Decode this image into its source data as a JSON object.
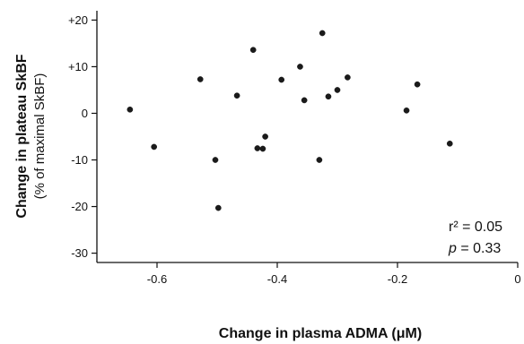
{
  "chart_data": {
    "type": "scatter",
    "title": "",
    "xlabel": "Change in plasma ADMA (μM)",
    "ylabel": "Change in plateau SkBF",
    "ylabel_sub": "(% of maximal SkBF)",
    "xlim": [
      -0.7,
      0.0
    ],
    "ylim": [
      -32,
      22
    ],
    "x_ticks": [
      {
        "value": -0.6,
        "label": "-0.6"
      },
      {
        "value": -0.4,
        "label": "-0.4"
      },
      {
        "value": -0.2,
        "label": "-0.2"
      },
      {
        "value": 0.0,
        "label": "0"
      }
    ],
    "y_ticks": [
      {
        "value": 20,
        "label": "+20"
      },
      {
        "value": 10,
        "label": "+10"
      },
      {
        "value": 0,
        "label": "0"
      },
      {
        "value": -10,
        "label": "-10"
      },
      {
        "value": -20,
        "label": "-20"
      },
      {
        "value": -30,
        "label": "-30"
      }
    ],
    "grid": false,
    "stats": {
      "r2": "r² = 0.05",
      "p_symbol": "p",
      "p_rest": " = 0.33"
    },
    "points": [
      {
        "x": -0.645,
        "y": 0.8
      },
      {
        "x": -0.605,
        "y": -7.2
      },
      {
        "x": -0.528,
        "y": 7.3
      },
      {
        "x": -0.503,
        "y": -10.0
      },
      {
        "x": -0.498,
        "y": -20.3
      },
      {
        "x": -0.467,
        "y": 3.8
      },
      {
        "x": -0.44,
        "y": 13.6
      },
      {
        "x": -0.433,
        "y": -7.5
      },
      {
        "x": -0.424,
        "y": -7.6
      },
      {
        "x": -0.42,
        "y": -5.0
      },
      {
        "x": -0.393,
        "y": 7.2
      },
      {
        "x": -0.362,
        "y": 10.0
      },
      {
        "x": -0.355,
        "y": 2.8
      },
      {
        "x": -0.33,
        "y": -10.0
      },
      {
        "x": -0.325,
        "y": 17.2
      },
      {
        "x": -0.315,
        "y": 3.6
      },
      {
        "x": -0.3,
        "y": 5.0
      },
      {
        "x": -0.283,
        "y": 7.7
      },
      {
        "x": -0.185,
        "y": 0.6
      },
      {
        "x": -0.167,
        "y": 6.2
      },
      {
        "x": -0.113,
        "y": -6.5
      }
    ]
  }
}
